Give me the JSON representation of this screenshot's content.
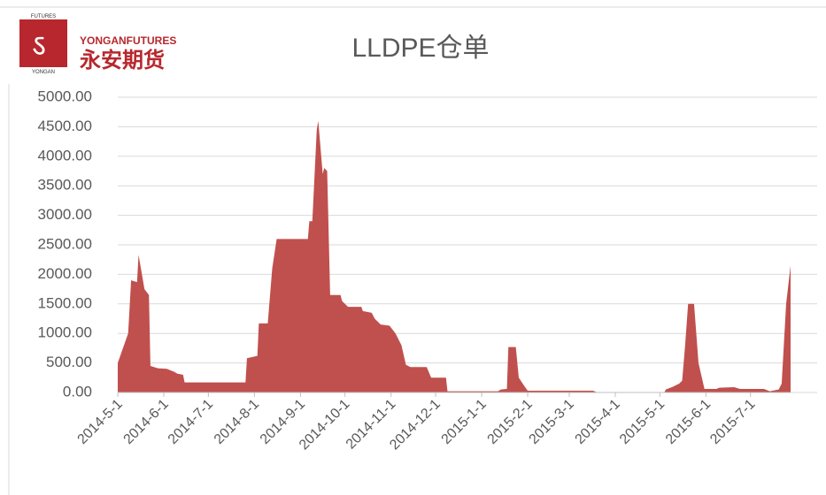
{
  "logo": {
    "brand": "YONGANFUTURES",
    "name": "永安期货",
    "mark_top": "FUTURES",
    "mark_bottom": "YONGAN"
  },
  "chart_data": {
    "type": "area",
    "title": "LLDPE仓单",
    "color": "#c0504d",
    "grid": true,
    "x": [
      "2014-5-1",
      "2014-5-8",
      "2014-5-10",
      "2014-5-14",
      "2014-5-15",
      "2014-5-19",
      "2014-5-22",
      "2014-5-23",
      "2014-5-28",
      "2014-6-3",
      "2014-6-8",
      "2014-6-10",
      "2014-6-14",
      "2014-6-15",
      "2014-7-26",
      "2014-7-27",
      "2014-8-3",
      "2014-8-4",
      "2014-8-10",
      "2014-8-13",
      "2014-8-16",
      "2014-9-6",
      "2014-9-7",
      "2014-9-9",
      "2014-9-12",
      "2014-9-13",
      "2014-9-16",
      "2014-9-17",
      "2014-9-19",
      "2014-9-21",
      "2014-9-28",
      "2014-9-29",
      "2014-10-3",
      "2014-10-12",
      "2014-10-13",
      "2014-10-19",
      "2014-10-21",
      "2014-10-25",
      "2014-10-31",
      "2014-11-4",
      "2014-11-8",
      "2014-11-11",
      "2014-11-14",
      "2014-11-25",
      "2014-11-28",
      "2014-12-8",
      "2014-12-9",
      "2015-1-12",
      "2015-1-14",
      "2015-1-18",
      "2015-1-19",
      "2015-1-24",
      "2015-1-26",
      "2015-1-30",
      "2015-2-1",
      "2015-3-17",
      "2015-3-20",
      "2015-5-4",
      "2015-5-5",
      "2015-5-10",
      "2015-5-14",
      "2015-5-16",
      "2015-5-18",
      "2015-5-20",
      "2015-5-24",
      "2015-5-27",
      "2015-5-31",
      "2015-6-8",
      "2015-6-10",
      "2015-6-20",
      "2015-6-24",
      "2015-7-10",
      "2015-7-14",
      "2015-7-20",
      "2015-7-22",
      "2015-7-25",
      "2015-7-28"
    ],
    "values": [
      500,
      1000,
      1900,
      1870,
      2330,
      1750,
      1650,
      450,
      410,
      400,
      350,
      320,
      300,
      170,
      170,
      580,
      620,
      1170,
      1170,
      2100,
      2600,
      2600,
      2900,
      2900,
      4450,
      4600,
      3700,
      3800,
      3750,
      1650,
      1650,
      1550,
      1450,
      1450,
      1380,
      1350,
      1250,
      1150,
      1130,
      1000,
      800,
      470,
      430,
      430,
      250,
      250,
      20,
      20,
      50,
      60,
      770,
      770,
      250,
      100,
      30,
      30,
      0,
      0,
      50,
      100,
      150,
      200,
      800,
      1500,
      1500,
      500,
      60,
      60,
      80,
      90,
      60,
      60,
      20,
      50,
      150,
      1500,
      2150
    ],
    "xlim": [
      "2014-5-1",
      "2015-7-28"
    ],
    "xticks": [
      "2014-5-1",
      "2014-6-1",
      "2014-7-1",
      "2014-8-1",
      "2014-9-1",
      "2014-10-1",
      "2014-11-1",
      "2014-12-1",
      "2015-1-1",
      "2015-2-1",
      "2015-3-1",
      "2015-4-1",
      "2015-5-1",
      "2015-6-1",
      "2015-7-1"
    ],
    "ylim": [
      0,
      5000
    ],
    "yticks": [
      {
        "value": 0,
        "label": "0.00"
      },
      {
        "value": 500,
        "label": "500.00"
      },
      {
        "value": 1000,
        "label": "1000.00"
      },
      {
        "value": 1500,
        "label": "1500.00"
      },
      {
        "value": 2000,
        "label": "2000.00"
      },
      {
        "value": 2500,
        "label": "2500.00"
      },
      {
        "value": 3000,
        "label": "3000.00"
      },
      {
        "value": 3500,
        "label": "3500.00"
      },
      {
        "value": 4000,
        "label": "4000.00"
      },
      {
        "value": 4500,
        "label": "4500.00"
      },
      {
        "value": 5000,
        "label": "5000.00"
      }
    ]
  }
}
